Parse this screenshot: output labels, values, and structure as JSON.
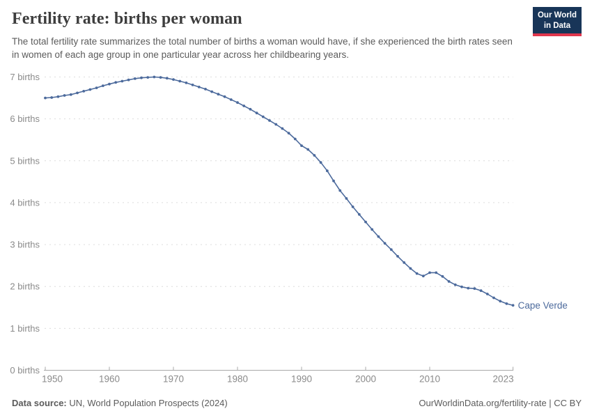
{
  "header": {
    "title": "Fertility rate: births per woman",
    "subtitle": "The total fertility rate summarizes the total number of births a woman would have, if she experienced the birth rates seen in women of each age group in one particular year across her childbearing years.",
    "logo": {
      "line1": "Our World",
      "line2": "in Data",
      "bg_color": "#183558",
      "accent_color": "#e0364d"
    }
  },
  "chart_data": {
    "type": "line",
    "title": "Fertility rate: births per woman",
    "entity_label": "Cape Verde",
    "x": [
      1950,
      1951,
      1952,
      1953,
      1954,
      1955,
      1956,
      1957,
      1958,
      1959,
      1960,
      1961,
      1962,
      1963,
      1964,
      1965,
      1966,
      1967,
      1968,
      1969,
      1970,
      1971,
      1972,
      1973,
      1974,
      1975,
      1976,
      1977,
      1978,
      1979,
      1980,
      1981,
      1982,
      1983,
      1984,
      1985,
      1986,
      1987,
      1988,
      1989,
      1990,
      1991,
      1992,
      1993,
      1994,
      1995,
      1996,
      1997,
      1998,
      1999,
      2000,
      2001,
      2002,
      2003,
      2004,
      2005,
      2006,
      2007,
      2008,
      2009,
      2010,
      2011,
      2012,
      2013,
      2014,
      2015,
      2016,
      2017,
      2018,
      2019,
      2020,
      2021,
      2022,
      2023
    ],
    "series": [
      {
        "name": "Cape Verde",
        "values": [
          6.5,
          6.51,
          6.53,
          6.56,
          6.58,
          6.62,
          6.66,
          6.7,
          6.74,
          6.79,
          6.83,
          6.87,
          6.9,
          6.93,
          6.96,
          6.98,
          6.99,
          7.0,
          6.99,
          6.97,
          6.94,
          6.9,
          6.86,
          6.81,
          6.76,
          6.71,
          6.65,
          6.59,
          6.53,
          6.46,
          6.39,
          6.31,
          6.23,
          6.14,
          6.05,
          5.96,
          5.87,
          5.77,
          5.66,
          5.52,
          5.36,
          5.27,
          5.13,
          4.96,
          4.76,
          4.52,
          4.29,
          4.1,
          3.9,
          3.72,
          3.54,
          3.36,
          3.19,
          3.03,
          2.88,
          2.72,
          2.57,
          2.43,
          2.31,
          2.25,
          2.33,
          2.33,
          2.24,
          2.12,
          2.04,
          1.99,
          1.96,
          1.95,
          1.9,
          1.82,
          1.73,
          1.65,
          1.59,
          1.55
        ]
      }
    ],
    "xlabel": "",
    "ylabel": "",
    "xlim": [
      1950,
      2023
    ],
    "ylim": [
      0,
      7
    ],
    "x_ticks": [
      1950,
      1960,
      1970,
      1980,
      1990,
      2000,
      2010,
      2023
    ],
    "y_ticks": [
      0,
      1,
      2,
      3,
      4,
      5,
      6,
      7
    ],
    "y_tick_suffix": " births",
    "grid": "dashed-horizontal",
    "legend_position": "end-of-line-label",
    "line_color": "#4c6a9c",
    "grid_color": "#dcdcdc",
    "axis_color": "#a8a8a8",
    "tick_label_color": "#8a8a8a"
  },
  "footer": {
    "source_label": "Data source:",
    "source_text": " UN, World Population Prospects (2024)",
    "link_text": "OurWorldinData.org/fertility-rate | CC BY"
  }
}
